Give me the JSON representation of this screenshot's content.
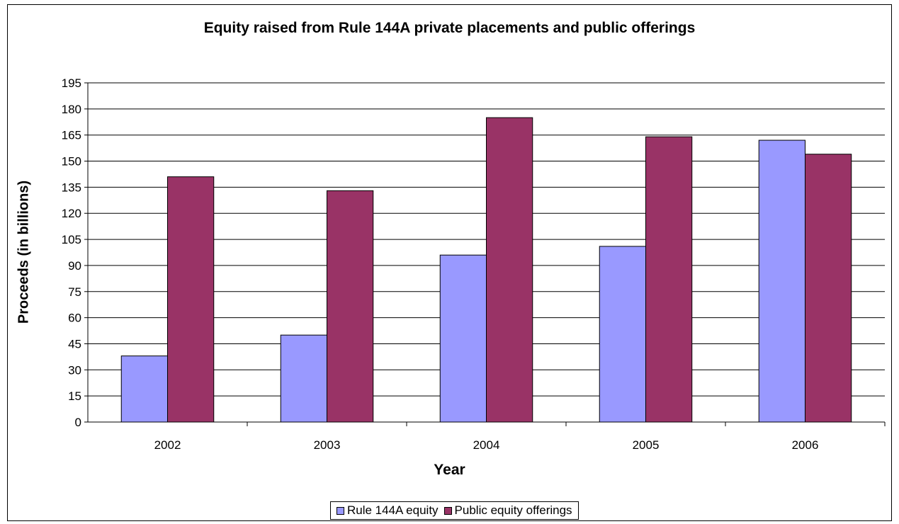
{
  "chart_data": {
    "type": "bar",
    "title": "Equity raised from Rule 144A private placements and public offerings",
    "xlabel": "Year",
    "ylabel": "Proceeds (in billions)",
    "categories": [
      "2002",
      "2003",
      "2004",
      "2005",
      "2006"
    ],
    "series": [
      {
        "name": "Rule 144A equity",
        "color": "#9999ff",
        "values": [
          38,
          50,
          96,
          101,
          162
        ]
      },
      {
        "name": "Public equity offerings",
        "color": "#993366",
        "values": [
          141,
          133,
          175,
          164,
          154
        ]
      }
    ],
    "ylim": [
      0,
      195
    ],
    "yticks": [
      "0",
      "15",
      "30",
      "45",
      "60",
      "75",
      "90",
      "105",
      "120",
      "135",
      "150",
      "165",
      "180",
      "195"
    ],
    "grid": true,
    "legend_position": "bottom"
  }
}
